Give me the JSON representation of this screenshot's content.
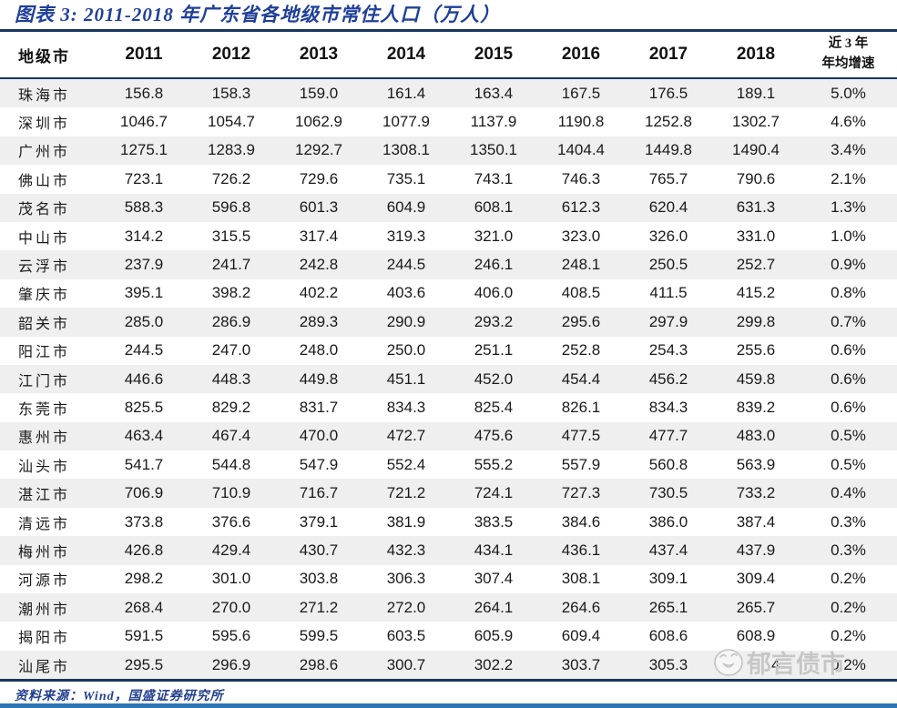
{
  "title": "图表 3:  2011-2018 年广东省各地级市常住人口（万人）",
  "table": {
    "city_header": "地级市",
    "year_headers": [
      "2011",
      "2012",
      "2013",
      "2014",
      "2015",
      "2016",
      "2017",
      "2018"
    ],
    "growth_header_line1": "近 3 年",
    "growth_header_line2": "年均增速",
    "rows": [
      {
        "city": "珠海市",
        "values": [
          "156.8",
          "158.3",
          "159.0",
          "161.4",
          "163.4",
          "167.5",
          "176.5",
          "189.1"
        ],
        "growth": "5.0%"
      },
      {
        "city": "深圳市",
        "values": [
          "1046.7",
          "1054.7",
          "1062.9",
          "1077.9",
          "1137.9",
          "1190.8",
          "1252.8",
          "1302.7"
        ],
        "growth": "4.6%"
      },
      {
        "city": "广州市",
        "values": [
          "1275.1",
          "1283.9",
          "1292.7",
          "1308.1",
          "1350.1",
          "1404.4",
          "1449.8",
          "1490.4"
        ],
        "growth": "3.4%"
      },
      {
        "city": "佛山市",
        "values": [
          "723.1",
          "726.2",
          "729.6",
          "735.1",
          "743.1",
          "746.3",
          "765.7",
          "790.6"
        ],
        "growth": "2.1%"
      },
      {
        "city": "茂名市",
        "values": [
          "588.3",
          "596.8",
          "601.3",
          "604.9",
          "608.1",
          "612.3",
          "620.4",
          "631.3"
        ],
        "growth": "1.3%"
      },
      {
        "city": "中山市",
        "values": [
          "314.2",
          "315.5",
          "317.4",
          "319.3",
          "321.0",
          "323.0",
          "326.0",
          "331.0"
        ],
        "growth": "1.0%"
      },
      {
        "city": "云浮市",
        "values": [
          "237.9",
          "241.7",
          "242.8",
          "244.5",
          "246.1",
          "248.1",
          "250.5",
          "252.7"
        ],
        "growth": "0.9%"
      },
      {
        "city": "肇庆市",
        "values": [
          "395.1",
          "398.2",
          "402.2",
          "403.6",
          "406.0",
          "408.5",
          "411.5",
          "415.2"
        ],
        "growth": "0.8%"
      },
      {
        "city": "韶关市",
        "values": [
          "285.0",
          "286.9",
          "289.3",
          "290.9",
          "293.2",
          "295.6",
          "297.9",
          "299.8"
        ],
        "growth": "0.7%"
      },
      {
        "city": "阳江市",
        "values": [
          "244.5",
          "247.0",
          "248.0",
          "250.0",
          "251.1",
          "252.8",
          "254.3",
          "255.6"
        ],
        "growth": "0.6%"
      },
      {
        "city": "江门市",
        "values": [
          "446.6",
          "448.3",
          "449.8",
          "451.1",
          "452.0",
          "454.4",
          "456.2",
          "459.8"
        ],
        "growth": "0.6%"
      },
      {
        "city": "东莞市",
        "values": [
          "825.5",
          "829.2",
          "831.7",
          "834.3",
          "825.4",
          "826.1",
          "834.3",
          "839.2"
        ],
        "growth": "0.6%"
      },
      {
        "city": "惠州市",
        "values": [
          "463.4",
          "467.4",
          "470.0",
          "472.7",
          "475.6",
          "477.5",
          "477.7",
          "483.0"
        ],
        "growth": "0.5%"
      },
      {
        "city": "汕头市",
        "values": [
          "541.7",
          "544.8",
          "547.9",
          "552.4",
          "555.2",
          "557.9",
          "560.8",
          "563.9"
        ],
        "growth": "0.5%"
      },
      {
        "city": "湛江市",
        "values": [
          "706.9",
          "710.9",
          "716.7",
          "721.2",
          "724.1",
          "727.3",
          "730.5",
          "733.2"
        ],
        "growth": "0.4%"
      },
      {
        "city": "清远市",
        "values": [
          "373.8",
          "376.6",
          "379.1",
          "381.9",
          "383.5",
          "384.6",
          "386.0",
          "387.4"
        ],
        "growth": "0.3%"
      },
      {
        "city": "梅州市",
        "values": [
          "426.8",
          "429.4",
          "430.7",
          "432.3",
          "434.1",
          "436.1",
          "437.4",
          "437.9"
        ],
        "growth": "0.3%"
      },
      {
        "city": "河源市",
        "values": [
          "298.2",
          "301.0",
          "303.8",
          "306.3",
          "307.4",
          "308.1",
          "309.1",
          "309.4"
        ],
        "growth": "0.2%"
      },
      {
        "city": "潮州市",
        "values": [
          "268.4",
          "270.0",
          "271.2",
          "272.0",
          "264.1",
          "264.6",
          "265.1",
          "265.7"
        ],
        "growth": "0.2%"
      },
      {
        "city": "揭阳市",
        "values": [
          "591.5",
          "595.6",
          "599.5",
          "603.5",
          "605.9",
          "609.4",
          "608.6",
          "608.9"
        ],
        "growth": "0.2%"
      },
      {
        "city": "汕尾市",
        "values": [
          "295.5",
          "296.9",
          "298.6",
          "300.7",
          "302.2",
          "303.7",
          "305.3",
          "2  4"
        ],
        "growth": "0.2%"
      }
    ]
  },
  "footer": {
    "source": "资料来源：Wind，国盛证券研究所"
  },
  "watermark": {
    "text": "郁言债市",
    "icon": "smiley-face-icon"
  },
  "colors": {
    "title_blue": "#1f3f9b",
    "rule_navy": "#17365d",
    "row_stripe": "#efefef",
    "bottom_bar_blue": "#2e75b6",
    "watermark_gray": "#c6c6c6"
  }
}
